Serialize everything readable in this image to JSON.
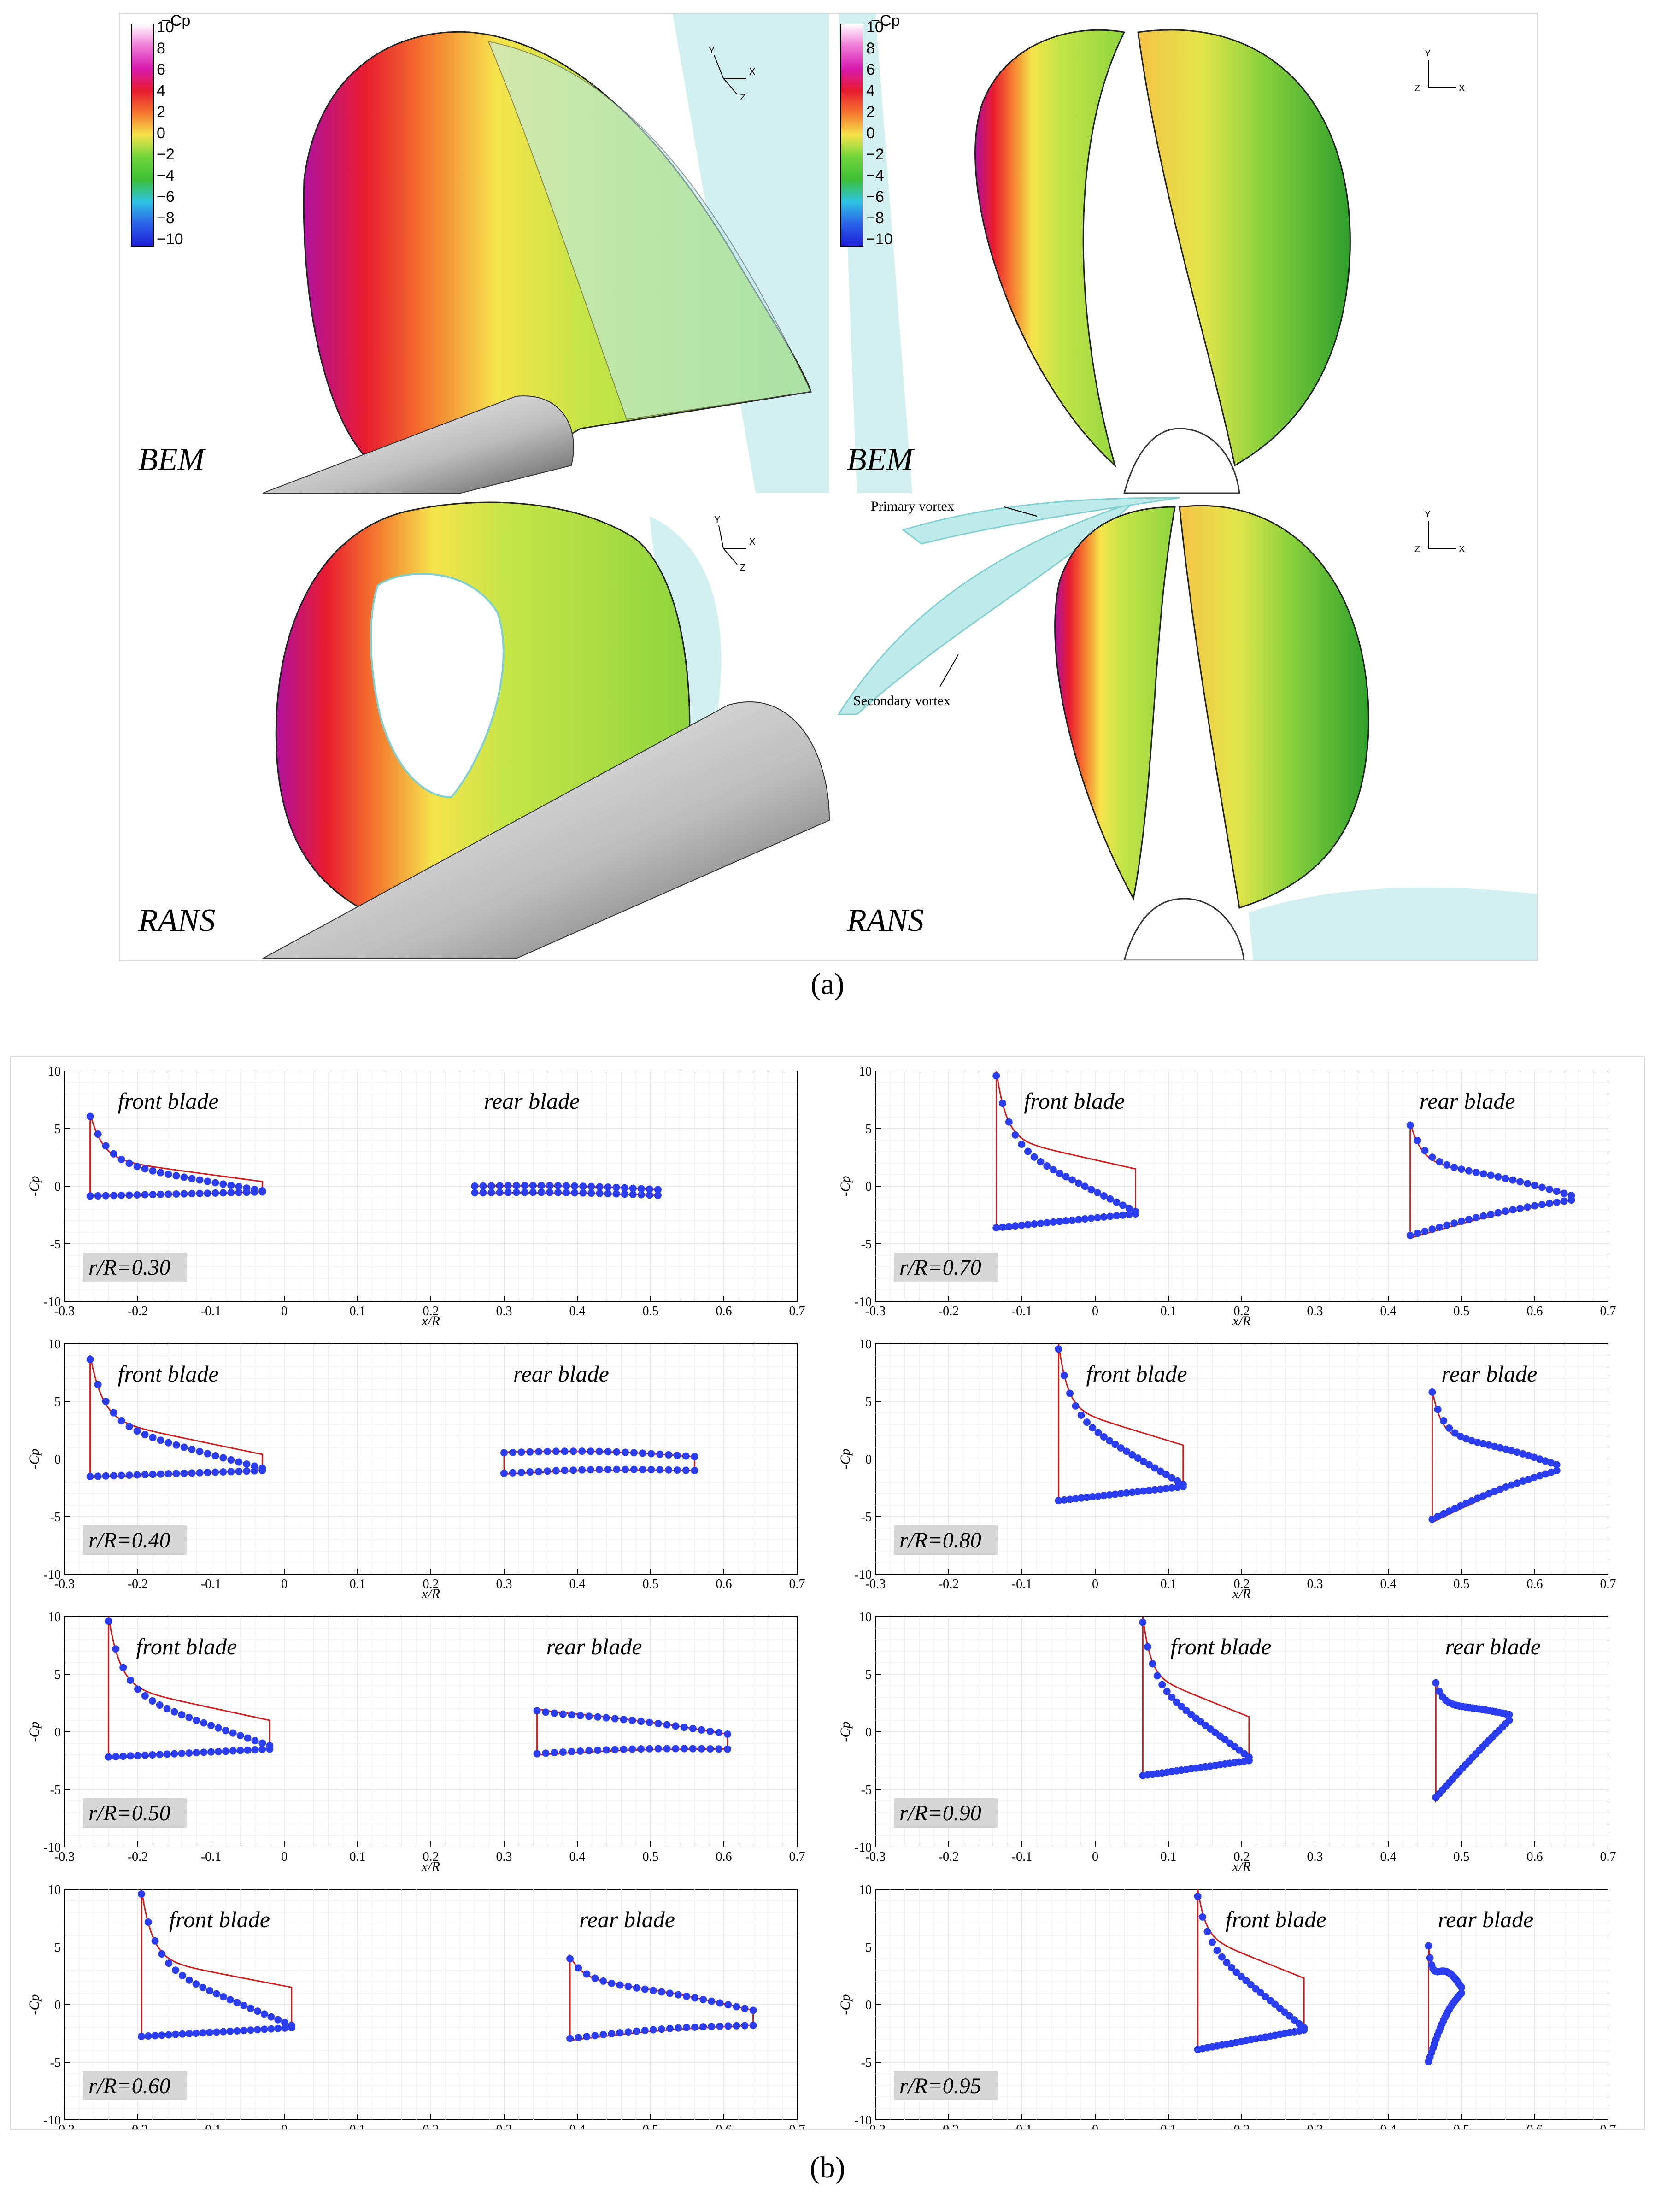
{
  "captions": {
    "a": "(a)",
    "b": "(b)"
  },
  "panel_a": {
    "colorbar_title": "−Cp",
    "colorbar_ticks": [
      "10",
      "8",
      "6",
      "4",
      "2",
      "0",
      "−2",
      "−4",
      "−6",
      "−8",
      "−10"
    ],
    "colorbar_colors": [
      "#ffffff",
      "#f7c6ee",
      "#ef7ad8",
      "#d81bb0",
      "#b5129e",
      "#e81b30",
      "#f5421e",
      "#f4762e",
      "#f79a3c",
      "#f6c64a",
      "#f5e34c",
      "#e6ef4e",
      "#b6e646",
      "#6fd53b",
      "#3dbf35",
      "#30c9a8",
      "#2ec3e3",
      "#2a9ef0",
      "#2b62e8",
      "#1e1fd8"
    ],
    "quadrants": [
      {
        "label": "BEM"
      },
      {
        "label": "BEM"
      },
      {
        "label": "RANS"
      },
      {
        "label": "RANS"
      }
    ],
    "axis_labels": [
      "Y",
      "X",
      "Z"
    ],
    "annotations": [
      "Primary vortex",
      "Secondary vortex"
    ]
  },
  "chart_data": {
    "type": "line",
    "x_label": "x/R",
    "y_label": "-Cp",
    "xlim": [
      -0.3,
      0.7
    ],
    "ylim": [
      -10,
      10
    ],
    "x_ticks": [
      "-0.3",
      "-0.2",
      "-0.1",
      "0",
      "0.1",
      "0.2",
      "0.3",
      "0.4",
      "0.5",
      "0.6",
      "0.7"
    ],
    "y_ticks": [
      "10",
      "5",
      "0",
      "-5",
      "-10"
    ],
    "series_names": [
      "BEM (line)",
      "RANS (points)"
    ],
    "series_colors": {
      "line": "#d11a1a",
      "points": "#2b3df0"
    },
    "panels": [
      {
        "label": "r/R=0.30",
        "front_label": "front blade",
        "rear_label": "rear blade",
        "front": {
          "x0": -0.265,
          "x1": -0.03,
          "le_peak": 6.3,
          "upper_le": 2.4,
          "upper_te": 0.4,
          "lower_le": -0.9,
          "lower_te": -0.5,
          "rans_upper_te": -0.4
        },
        "rear": {
          "x0": 0.26,
          "x1": 0.51,
          "le_peak": 0.0,
          "upper_le": 0.0,
          "upper_te": -0.3,
          "lower_le": -0.6,
          "lower_te": -0.8,
          "mid_bulge": 0.5
        }
      },
      {
        "label": "r/R=0.40",
        "front_label": "front blade",
        "rear_label": "rear blade",
        "front": {
          "x0": -0.265,
          "x1": -0.03,
          "le_peak": 9.0,
          "upper_le": 3.5,
          "upper_te": 0.4,
          "lower_le": -1.6,
          "lower_te": -1.0,
          "rans_upper_te": -0.8
        },
        "rear": {
          "x0": 0.3,
          "x1": 0.56,
          "le_peak": 0.6,
          "upper_le": 0.6,
          "upper_te": 0.2,
          "lower_le": -1.3,
          "lower_te": -1.0,
          "mid_bulge": 0.8
        }
      },
      {
        "label": "r/R=0.50",
        "front_label": "front blade",
        "rear_label": "rear blade",
        "front": {
          "x0": -0.24,
          "x1": -0.02,
          "le_peak": 10.0,
          "upper_le": 4.0,
          "upper_te": 1.0,
          "lower_le": -2.3,
          "lower_te": -1.5,
          "rans_upper_te": -1.2
        },
        "rear": {
          "x0": 0.345,
          "x1": 0.605,
          "le_peak": 2.0,
          "upper_le": 1.8,
          "upper_te": -0.2,
          "lower_le": -2.0,
          "lower_te": -1.5,
          "mid_bulge": 0.8
        }
      },
      {
        "label": "r/R=0.60",
        "front_label": "front blade",
        "rear_label": "rear blade",
        "front": {
          "x0": -0.195,
          "x1": 0.01,
          "le_peak": 10.0,
          "upper_le": 4.0,
          "upper_te": 1.5,
          "lower_le": -2.9,
          "lower_te": -2.0,
          "rans_upper_te": -1.8
        },
        "rear": {
          "x0": 0.39,
          "x1": 0.64,
          "le_peak": 4.2,
          "upper_le": 2.2,
          "upper_te": -0.5,
          "lower_le": -3.1,
          "lower_te": -1.8,
          "mid_bulge": 1.0
        }
      },
      {
        "label": "r/R=0.70",
        "front_label": "front blade",
        "rear_label": "rear blade",
        "front": {
          "x0": -0.135,
          "x1": 0.055,
          "le_peak": 10.0,
          "upper_le": 4.2,
          "upper_te": 1.5,
          "lower_le": -3.8,
          "lower_te": -2.4,
          "rans_upper_te": -2.2
        },
        "rear": {
          "x0": 0.43,
          "x1": 0.65,
          "le_peak": 5.5,
          "upper_le": 2.0,
          "upper_te": -0.8,
          "lower_le": -4.5,
          "lower_te": -1.2,
          "mid_bulge": 1.2
        }
      },
      {
        "label": "r/R=0.80",
        "front_label": "front blade",
        "rear_label": "rear blade",
        "front": {
          "x0": -0.05,
          "x1": 0.12,
          "le_peak": 10.0,
          "upper_le": 4.5,
          "upper_te": 1.2,
          "lower_le": -3.8,
          "lower_te": -2.4,
          "rans_upper_te": -2.2
        },
        "rear": {
          "x0": 0.46,
          "x1": 0.63,
          "le_peak": 6.0,
          "upper_le": 2.0,
          "upper_te": -0.5,
          "lower_le": -5.5,
          "lower_te": -1.0,
          "mid_bulge": 1.2
        }
      },
      {
        "label": "r/R=0.90",
        "front_label": "front blade",
        "rear_label": "rear blade",
        "front": {
          "x0": 0.065,
          "x1": 0.21,
          "le_peak": 10.0,
          "upper_le": 5.0,
          "upper_te": 1.3,
          "lower_le": -4.0,
          "lower_te": -2.5,
          "rans_upper_te": -2.2
        },
        "rear": {
          "x0": 0.465,
          "x1": 0.565,
          "le_peak": 4.5,
          "upper_le": 2.5,
          "upper_te": 1.5,
          "lower_le": -6.0,
          "lower_te": 1.0,
          "mid_bulge": 0.5
        }
      },
      {
        "label": "r/R=0.95",
        "front_label": "front blade",
        "rear_label": "rear blade",
        "front": {
          "x0": 0.14,
          "x1": 0.285,
          "le_peak": 10.0,
          "upper_le": 6.0,
          "upper_te": 2.3,
          "lower_le": -4.1,
          "lower_te": -2.2,
          "rans_upper_te": -2.0
        },
        "rear": {
          "x0": 0.455,
          "x1": 0.5,
          "le_peak": 5.3,
          "upper_le": 2.0,
          "upper_te": 1.5,
          "lower_le": -5.2,
          "lower_te": 1.0,
          "mid_bulge": 3.5
        }
      }
    ]
  }
}
